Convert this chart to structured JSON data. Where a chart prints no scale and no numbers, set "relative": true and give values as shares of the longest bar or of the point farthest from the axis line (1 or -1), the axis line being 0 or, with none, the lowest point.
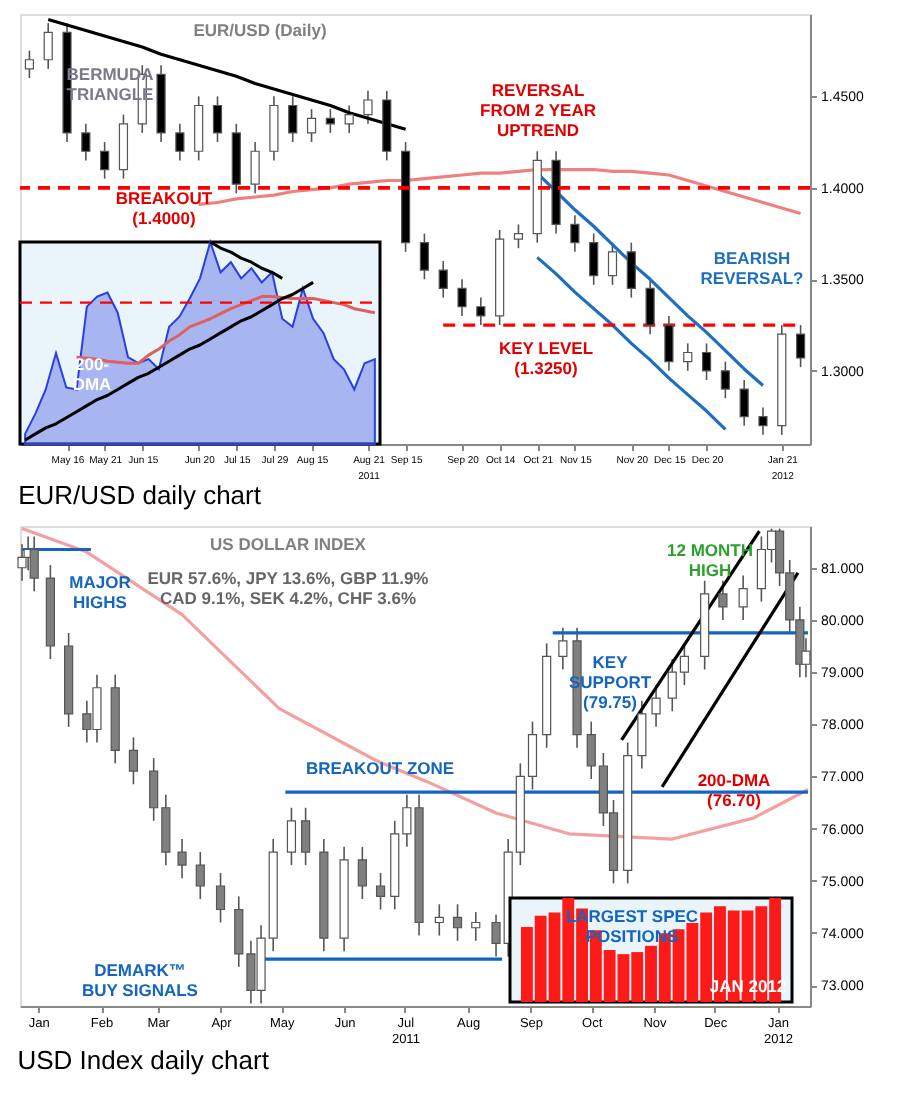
{
  "chart_data": [
    {
      "type": "candlestick",
      "title": "EUR/USD daily chart",
      "categories": [
        null,
        null,
        "May 16",
        null,
        "May 21",
        null,
        "Jun 15",
        null,
        null,
        "Jun 20",
        null,
        "Jul 15",
        null,
        "Jul 29",
        null,
        "Aug 15",
        null,
        null,
        "Aug 21\n2011",
        null,
        "Sep 15",
        null,
        null,
        "Sep 20",
        null,
        "Oct 14",
        null,
        "Oct 21",
        null,
        "Nov 15",
        null,
        null,
        "Nov 20",
        null,
        "Dec 15",
        null,
        "Dec 20",
        null,
        null,
        null,
        "Jan 21\n2012",
        null
      ],
      "ohlc": [
        [
          1.465,
          1.475,
          1.46,
          1.47
        ],
        [
          1.47,
          1.49,
          1.465,
          1.485
        ],
        [
          1.485,
          1.49,
          1.425,
          1.43
        ],
        [
          1.43,
          1.435,
          1.415,
          1.42
        ],
        [
          1.42,
          1.425,
          1.405,
          1.41
        ],
        [
          1.41,
          1.44,
          1.405,
          1.435
        ],
        [
          1.435,
          1.467,
          1.43,
          1.462
        ],
        [
          1.462,
          1.467,
          1.425,
          1.43
        ],
        [
          1.43,
          1.435,
          1.415,
          1.42
        ],
        [
          1.42,
          1.45,
          1.415,
          1.445
        ],
        [
          1.445,
          1.45,
          1.425,
          1.43
        ],
        [
          1.43,
          1.435,
          1.397,
          1.402
        ],
        [
          1.402,
          1.425,
          1.397,
          1.42
        ],
        [
          1.42,
          1.45,
          1.415,
          1.445
        ],
        [
          1.445,
          1.45,
          1.425,
          1.43
        ],
        [
          1.43,
          1.443,
          1.425,
          1.438
        ],
        [
          1.438,
          1.443,
          1.43,
          1.435
        ],
        [
          1.435,
          1.445,
          1.43,
          1.44
        ],
        [
          1.44,
          1.453,
          1.435,
          1.448
        ],
        [
          1.448,
          1.453,
          1.415,
          1.42
        ],
        [
          1.42,
          1.425,
          1.365,
          1.37
        ],
        [
          1.37,
          1.375,
          1.35,
          1.355
        ],
        [
          1.355,
          1.36,
          1.34,
          1.345
        ],
        [
          1.345,
          1.35,
          1.33,
          1.335
        ],
        [
          1.335,
          1.34,
          1.325,
          1.33
        ],
        [
          1.33,
          1.377,
          1.325,
          1.372
        ],
        [
          1.372,
          1.38,
          1.367,
          1.375
        ],
        [
          1.375,
          1.42,
          1.37,
          1.415
        ],
        [
          1.415,
          1.42,
          1.375,
          1.38
        ],
        [
          1.38,
          1.385,
          1.365,
          1.37
        ],
        [
          1.37,
          1.375,
          1.347,
          1.352
        ],
        [
          1.352,
          1.37,
          1.347,
          1.365
        ],
        [
          1.365,
          1.37,
          1.34,
          1.345
        ],
        [
          1.345,
          1.35,
          1.32,
          1.325
        ],
        [
          1.325,
          1.33,
          1.3,
          1.305
        ],
        [
          1.305,
          1.315,
          1.3,
          1.31
        ],
        [
          1.31,
          1.315,
          1.295,
          1.3
        ],
        [
          1.3,
          1.305,
          1.285,
          1.29
        ],
        [
          1.29,
          1.295,
          1.27,
          1.275
        ],
        [
          1.275,
          1.28,
          1.265,
          1.27
        ],
        [
          1.27,
          1.325,
          1.265,
          1.32
        ],
        [
          1.32,
          1.325,
          1.302,
          1.307
        ]
      ],
      "colors": [
        "#ffffff",
        "#ffffff",
        "#000000",
        "#000000",
        "#000000",
        "#ffffff",
        "#ffffff",
        "#000000",
        "#000000",
        "#ffffff",
        "#000000",
        "#000000",
        "#ffffff",
        "#ffffff",
        "#000000",
        "#ffffff",
        "#000000",
        "#ffffff",
        "#ffffff",
        "#000000",
        "#000000",
        "#000000",
        "#000000",
        "#000000",
        "#000000",
        "#ffffff",
        "#ffffff",
        "#ffffff",
        "#000000",
        "#000000",
        "#000000",
        "#ffffff",
        "#000000",
        "#000000",
        "#000000",
        "#ffffff",
        "#000000",
        "#000000",
        "#000000",
        "#000000",
        "#ffffff",
        "#000000"
      ],
      "ylim": [
        1.26,
        1.495
      ],
      "yticks": [
        {
          "value": 1.3,
          "label": "1.3000"
        },
        {
          "value": 1.35,
          "label": "1.3500"
        },
        {
          "value": 1.4,
          "label": "1.4000"
        },
        {
          "value": 1.45,
          "label": "1.4500"
        }
      ],
      "series": [
        {
          "type": "line",
          "color": "#f08080",
          "values": [
            null,
            null,
            null,
            null,
            null,
            null,
            null,
            null,
            null,
            1.391,
            1.392,
            1.394,
            1.395,
            1.396,
            1.398,
            1.399,
            1.4,
            1.402,
            1.403,
            1.404,
            1.404,
            1.405,
            1.406,
            1.407,
            1.408,
            1.408,
            1.409,
            1.41,
            1.41,
            1.41,
            1.41,
            1.409,
            1.409,
            1.408,
            1.407,
            1.404,
            1.401,
            1.398,
            1.395,
            1.392,
            1.389,
            1.386
          ]
        },
        {
          "type": "line",
          "color": "#000000",
          "values": [
            null,
            1.492,
            1.489,
            1.486,
            1.483,
            1.48,
            1.477,
            1.473,
            1.47,
            1.467,
            1.464,
            1.461,
            1.457,
            1.454,
            1.451,
            1.448,
            1.445,
            1.441,
            1.438,
            1.435,
            1.432,
            null,
            null,
            null,
            null,
            null,
            null,
            null,
            null,
            null,
            null,
            null,
            null,
            null,
            null,
            null,
            null,
            null,
            null,
            null,
            null,
            null
          ]
        },
        {
          "type": "line",
          "color": "#1f6fbf",
          "values": [
            null,
            null,
            null,
            null,
            null,
            null,
            null,
            null,
            null,
            null,
            null,
            null,
            null,
            null,
            null,
            null,
            null,
            null,
            null,
            null,
            null,
            null,
            null,
            null,
            null,
            null,
            null,
            1.408,
            1.398,
            1.388,
            1.379,
            1.369,
            1.359,
            1.35,
            1.34,
            1.33,
            1.321,
            1.311,
            1.301,
            1.292,
            null,
            null
          ]
        },
        {
          "type": "line",
          "color": "#1f6fbf",
          "values": [
            null,
            null,
            null,
            null,
            null,
            null,
            null,
            null,
            null,
            null,
            null,
            null,
            null,
            null,
            null,
            null,
            null,
            null,
            null,
            null,
            null,
            null,
            null,
            null,
            null,
            null,
            null,
            1.362,
            1.353,
            1.343,
            1.334,
            1.325,
            1.315,
            1.306,
            1.296,
            1.287,
            1.278,
            1.268,
            null,
            null,
            null,
            null
          ]
        },
        {
          "type": "line",
          "color": "#ff0000",
          "line_style": "dashed",
          "values": [
            null,
            null,
            null,
            null,
            null,
            null,
            null,
            null,
            null,
            null,
            null,
            null,
            null,
            null,
            null,
            null,
            null,
            null,
            null,
            null,
            null,
            null,
            1.325,
            1.325,
            1.325,
            1.325,
            1.325,
            1.325,
            1.325,
            1.325,
            1.325,
            1.325,
            1.325,
            1.325,
            1.325,
            1.325,
            1.325,
            1.325,
            1.325,
            1.325,
            1.325,
            1.325
          ]
        }
      ],
      "ref_lines": [
        {
          "axis": "y",
          "value": 1.4,
          "color": "#ff0000",
          "line_style": "dashed"
        }
      ],
      "annotations": [
        "EUR/USD (Daily)",
        "BERMUDA\nTRIANGLE",
        "BREAKOUT\n(1.4000)",
        "REVERSAL\nFROM 2 YEAR\nUPTREND",
        "BEARISH\nREVERSAL?",
        "KEY LEVEL\n(1.3250)"
      ]
    },
    {
      "type": "area",
      "relative": true,
      "categories": [
        null,
        null,
        null,
        null,
        null,
        null,
        null,
        null,
        null,
        null,
        null,
        null,
        null,
        null,
        null,
        null,
        null,
        null,
        null,
        null,
        null,
        null,
        null,
        null,
        null,
        null,
        null,
        null,
        null,
        null,
        null,
        null,
        null,
        null,
        null
      ],
      "series": [
        {
          "type": "area",
          "color": "#2a3fe0",
          "values": [
            0.05,
            0.15,
            0.27,
            0.45,
            0.28,
            0.27,
            0.68,
            0.73,
            0.75,
            0.65,
            0.43,
            0.4,
            0.42,
            0.37,
            0.58,
            0.63,
            0.72,
            0.82,
            1.0,
            0.85,
            0.9,
            0.82,
            0.87,
            0.8,
            0.85,
            0.62,
            0.58,
            0.77,
            0.62,
            0.55,
            0.42,
            0.37,
            0.27,
            0.4,
            0.42
          ]
        },
        {
          "type": "line",
          "color": "#e06060",
          "values": [
            null,
            null,
            null,
            null,
            null,
            0.43,
            0.425,
            0.42,
            0.41,
            0.405,
            0.4,
            0.4,
            0.44,
            0.47,
            0.51,
            0.54,
            0.58,
            0.6,
            0.62,
            0.645,
            0.67,
            0.69,
            0.71,
            0.73,
            0.73,
            0.725,
            0.72,
            0.72,
            0.72,
            0.71,
            0.7,
            0.69,
            0.67,
            0.66,
            0.65
          ]
        },
        {
          "type": "line",
          "color": "#000000",
          "values": [
            0.02,
            0.05,
            0.08,
            0.1,
            0.13,
            0.16,
            0.19,
            0.22,
            0.24,
            0.27,
            0.3,
            0.33,
            0.35,
            0.38,
            0.41,
            0.44,
            0.47,
            0.49,
            0.52,
            0.55,
            0.58,
            0.61,
            0.63,
            0.66,
            0.69,
            0.72,
            0.74,
            0.77,
            0.8,
            null,
            null,
            null,
            null,
            null,
            null
          ]
        },
        {
          "type": "line",
          "color": "#000000",
          "values": [
            null,
            null,
            null,
            null,
            null,
            null,
            null,
            null,
            null,
            null,
            null,
            null,
            null,
            null,
            null,
            null,
            null,
            null,
            1.0,
            0.97,
            0.95,
            0.92,
            0.9,
            0.87,
            0.85,
            0.82,
            null,
            null,
            null,
            null,
            null,
            null,
            null,
            null,
            null
          ]
        }
      ],
      "ref_lines": [
        {
          "axis": "y",
          "value": 0.7,
          "color": "#ff0000",
          "line_style": "dashed"
        }
      ],
      "annotations": [
        "200-\nDMA"
      ]
    },
    {
      "type": "candlestick",
      "title": "USD Index daily chart",
      "x": [
        "2010-12-24",
        "2010-12-27",
        "2010-12-30",
        "2011-01-07",
        "2011-01-16",
        "2011-01-25",
        "2011-01-30",
        "2011-02-08",
        "2011-02-17",
        "2011-02-27",
        "2011-03-05",
        "2011-03-13",
        "2011-03-22",
        "2011-04-01",
        "2011-04-10",
        "2011-04-16",
        "2011-04-21",
        "2011-04-27",
        "2011-05-06",
        "2011-05-13",
        "2011-05-22",
        "2011-06-01",
        "2011-06-10",
        "2011-06-19",
        "2011-06-26",
        "2011-07-02",
        "2011-07-08",
        "2011-07-18",
        "2011-07-27",
        "2011-08-05",
        "2011-08-15",
        "2011-08-21",
        "2011-08-27",
        "2011-09-02",
        "2011-09-09",
        "2011-09-17",
        "2011-09-24",
        "2011-10-01",
        "2011-10-07",
        "2011-10-12",
        "2011-10-19",
        "2011-10-26",
        "2011-11-02",
        "2011-11-10",
        "2011-11-16",
        "2011-11-26",
        "2011-12-05",
        "2011-12-15",
        "2011-12-24",
        "2011-12-29",
        "2012-01-02",
        "2012-01-07",
        "2012-01-12",
        "2012-01-15"
      ],
      "ohlc": [
        [
          81.0,
          81.45,
          80.75,
          81.2
        ],
        [
          81.2,
          81.6,
          80.95,
          81.35
        ],
        [
          81.35,
          81.6,
          80.55,
          80.8
        ],
        [
          80.8,
          81.05,
          79.25,
          79.5
        ],
        [
          79.5,
          79.75,
          77.95,
          78.2
        ],
        [
          78.2,
          78.45,
          77.65,
          77.9
        ],
        [
          77.9,
          78.95,
          77.65,
          78.7
        ],
        [
          78.7,
          78.95,
          77.25,
          77.5
        ],
        [
          77.5,
          77.75,
          76.85,
          77.1
        ],
        [
          77.1,
          77.35,
          76.15,
          76.4
        ],
        [
          76.4,
          76.65,
          75.3,
          75.55
        ],
        [
          75.55,
          75.8,
          75.05,
          75.3
        ],
        [
          75.3,
          75.55,
          74.65,
          74.9
        ],
        [
          74.9,
          75.15,
          74.2,
          74.45
        ],
        [
          74.45,
          74.7,
          73.35,
          73.6
        ],
        [
          73.6,
          73.85,
          72.65,
          72.9
        ],
        [
          72.9,
          74.15,
          72.65,
          73.9
        ],
        [
          73.9,
          75.8,
          73.65,
          75.55
        ],
        [
          75.55,
          76.4,
          75.3,
          76.15
        ],
        [
          76.15,
          76.4,
          75.3,
          75.55
        ],
        [
          75.55,
          75.8,
          73.65,
          73.9
        ],
        [
          73.9,
          75.65,
          73.65,
          75.4
        ],
        [
          75.4,
          75.65,
          74.65,
          74.9
        ],
        [
          74.9,
          75.15,
          74.45,
          74.7
        ],
        [
          74.7,
          76.15,
          74.45,
          75.9
        ],
        [
          75.9,
          76.65,
          75.65,
          76.4
        ],
        [
          76.4,
          76.65,
          73.95,
          74.2
        ],
        [
          74.2,
          74.55,
          73.95,
          74.3
        ],
        [
          74.3,
          74.55,
          73.85,
          74.1
        ],
        [
          74.1,
          74.4,
          73.85,
          74.2
        ],
        [
          74.2,
          74.35,
          73.55,
          73.8
        ],
        [
          73.8,
          75.8,
          73.55,
          75.55
        ],
        [
          75.55,
          77.25,
          75.3,
          77.0
        ],
        [
          77.0,
          78.05,
          76.75,
          77.8
        ],
        [
          77.8,
          79.55,
          77.55,
          79.3
        ],
        [
          79.3,
          79.85,
          79.05,
          79.6
        ],
        [
          79.6,
          79.85,
          77.55,
          77.8
        ],
        [
          77.8,
          78.05,
          76.95,
          77.2
        ],
        [
          77.2,
          77.45,
          76.05,
          76.3
        ],
        [
          76.3,
          76.55,
          74.95,
          75.2
        ],
        [
          75.2,
          77.65,
          74.95,
          77.4
        ],
        [
          77.4,
          78.45,
          77.15,
          78.2
        ],
        [
          78.2,
          78.75,
          77.95,
          78.5
        ],
        [
          78.5,
          79.25,
          78.25,
          79.0
        ],
        [
          79.0,
          79.55,
          78.75,
          79.3
        ],
        [
          79.3,
          80.75,
          79.05,
          80.5
        ],
        [
          80.5,
          80.75,
          80.0,
          80.25
        ],
        [
          80.25,
          80.85,
          80.0,
          80.6
        ],
        [
          80.6,
          81.6,
          80.35,
          81.35
        ],
        [
          81.35,
          81.75,
          81.1,
          81.7
        ],
        [
          81.7,
          81.75,
          80.65,
          80.9
        ],
        [
          80.9,
          81.15,
          79.75,
          80.0
        ],
        [
          80.0,
          80.25,
          78.9,
          79.15
        ],
        [
          79.15,
          79.65,
          78.9,
          79.4
        ]
      ],
      "colors": [
        "#ffffff",
        "#ffffff",
        "#808080",
        "#808080",
        "#808080",
        "#808080",
        "#ffffff",
        "#808080",
        "#808080",
        "#808080",
        "#808080",
        "#808080",
        "#808080",
        "#808080",
        "#808080",
        "#808080",
        "#ffffff",
        "#ffffff",
        "#ffffff",
        "#808080",
        "#808080",
        "#ffffff",
        "#808080",
        "#808080",
        "#ffffff",
        "#ffffff",
        "#808080",
        "#ffffff",
        "#808080",
        "#ffffff",
        "#808080",
        "#ffffff",
        "#ffffff",
        "#ffffff",
        "#ffffff",
        "#ffffff",
        "#808080",
        "#808080",
        "#808080",
        "#808080",
        "#ffffff",
        "#ffffff",
        "#ffffff",
        "#ffffff",
        "#ffffff",
        "#ffffff",
        "#808080",
        "#ffffff",
        "#ffffff",
        "#ffffff",
        "#808080",
        "#808080",
        "#808080",
        "#ffffff"
      ],
      "xlim": [
        "2010-12-23",
        "2012-01-17"
      ],
      "xticks": [
        {
          "value": "2011-01-01",
          "label": "Jan"
        },
        {
          "value": "2011-02-01",
          "label": "Feb"
        },
        {
          "value": "2011-03-01",
          "label": "Mar"
        },
        {
          "value": "2011-04-01",
          "label": "Apr"
        },
        {
          "value": "2011-05-01",
          "label": "May"
        },
        {
          "value": "2011-06-01",
          "label": "Jun"
        },
        {
          "value": "2011-07-01",
          "label": "Jul\n2011"
        },
        {
          "value": "2011-08-01",
          "label": "Aug"
        },
        {
          "value": "2011-09-01",
          "label": "Sep"
        },
        {
          "value": "2011-10-01",
          "label": "Oct"
        },
        {
          "value": "2011-11-01",
          "label": "Nov"
        },
        {
          "value": "2011-12-01",
          "label": "Dec"
        },
        {
          "value": "2012-01-01",
          "label": "Jan\n2012"
        }
      ],
      "ylim": [
        72.6,
        81.8
      ],
      "yticks": [
        {
          "value": 73,
          "label": "73.000"
        },
        {
          "value": 74,
          "label": "74.000"
        },
        {
          "value": 75,
          "label": "75.000"
        },
        {
          "value": 76,
          "label": "76.000"
        },
        {
          "value": 77,
          "label": "77.000"
        },
        {
          "value": 78,
          "label": "78.000"
        },
        {
          "value": 79,
          "label": "79.000"
        },
        {
          "value": 80,
          "label": "80.000"
        },
        {
          "value": 81,
          "label": "81.000"
        }
      ],
      "series": [
        {
          "type": "line",
          "color": "#f4a0a0",
          "x": [
            "2010-12-24",
            "2011-01-25",
            "2011-03-13",
            "2011-04-30",
            "2011-06-17",
            "2011-07-12",
            "2011-08-15",
            "2011-09-20",
            "2011-11-10",
            "2011-12-20",
            "2012-01-16"
          ],
          "values": [
            81.75,
            81.3,
            80.1,
            78.3,
            77.3,
            76.9,
            76.3,
            75.9,
            75.8,
            76.2,
            76.75
          ]
        },
        {
          "type": "line",
          "color": "#1565c0",
          "x": [
            "2010-12-24",
            "2011-01-27"
          ],
          "values": [
            81.35,
            81.35
          ]
        },
        {
          "type": "line",
          "color": "#1565c0",
          "x": [
            "2011-09-12",
            "2012-01-16"
          ],
          "values": [
            79.75,
            79.75
          ]
        },
        {
          "type": "line",
          "color": "#1565c0",
          "x": [
            "2011-05-03",
            "2012-01-16"
          ],
          "values": [
            76.7,
            76.7
          ]
        },
        {
          "type": "line",
          "color": "#1565c0",
          "x": [
            "2011-04-19",
            "2011-08-18"
          ],
          "values": [
            73.5,
            73.5
          ]
        },
        {
          "type": "line",
          "color": "#000000",
          "x": [
            "2011-11-05",
            "2012-01-11"
          ],
          "values": [
            76.8,
            80.9
          ]
        },
        {
          "type": "line",
          "color": "#000000",
          "x": [
            "2011-10-16",
            "2011-12-23"
          ],
          "values": [
            77.7,
            81.7
          ]
        }
      ],
      "annotations": [
        "US DOLLAR INDEX",
        "EUR 57.6%, JPY 13.6%, GBP 11.9%\nCAD 9.1%, SEK 4.2%, CHF 3.6%",
        "MAJOR\nHIGHS",
        "12 MONTH\nHIGH",
        "KEY\nSUPPORT\n(79.75)",
        "200-DMA\n(76.70)",
        "BREAKOUT ZONE",
        "DEMARK™\nBUY SIGNALS"
      ]
    },
    {
      "type": "bar",
      "relative": true,
      "categories": [
        null,
        null,
        null,
        null,
        null,
        null,
        null,
        null,
        null,
        null,
        null,
        null,
        null,
        null,
        null,
        null,
        null,
        null,
        null
      ],
      "series": [
        {
          "type": "bar",
          "color": "#ff1a1a",
          "values": [
            0.72,
            0.83,
            0.86,
            1.0,
            0.9,
            0.69,
            0.5,
            0.46,
            0.48,
            0.54,
            0.66,
            0.7,
            0.76,
            0.86,
            0.92,
            0.88,
            0.88,
            0.92,
            1.0
          ]
        }
      ],
      "annotations": [
        "LARGEST SPEC\nPOSITIONS",
        "JAN 2012"
      ]
    }
  ]
}
